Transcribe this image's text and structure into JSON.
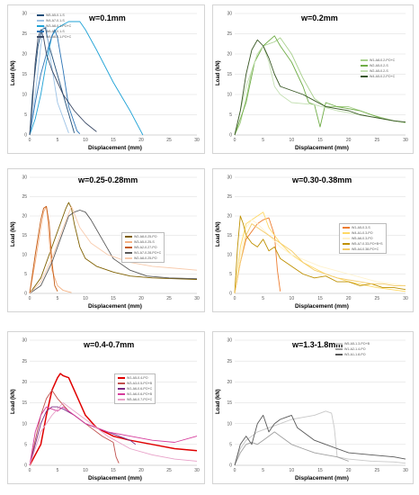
{
  "chart_data": [
    {
      "type": "line",
      "title": "w=0.1mm",
      "xlabel": "Displacement (mm)",
      "ylabel": "Load (kN)",
      "xlim": [
        0,
        30
      ],
      "ylim": [
        0,
        30
      ],
      "xticks": [
        0,
        5,
        10,
        15,
        20,
        25,
        30
      ],
      "yticks": [
        0,
        5,
        10,
        15,
        20,
        25,
        30
      ],
      "legend_position": "top-left",
      "series": [
        {
          "name": "W5-A5-0.1-S",
          "color": "#1f4e79",
          "x": [
            0,
            0.5,
            1.5,
            2.2,
            2.8,
            3.5,
            6,
            8
          ],
          "y": [
            0,
            10,
            22,
            26,
            26.5,
            22,
            10,
            0.5
          ]
        },
        {
          "name": "W4-A7-0.1-S",
          "color": "#9dc3e6",
          "x": [
            0,
            1,
            2,
            2.5,
            3,
            3.6,
            5,
            7
          ],
          "y": [
            0,
            10,
            22,
            27,
            26.5,
            20,
            8,
            0.5
          ]
        },
        {
          "name": "W3-A8-0.1-PO+C",
          "color": "#1fa2d6",
          "x": [
            0,
            1,
            2,
            3,
            4,
            5,
            7,
            9,
            10,
            12,
            15,
            18,
            20.3
          ],
          "y": [
            0,
            4,
            10,
            18,
            24.5,
            26.5,
            28,
            28,
            26,
            21,
            13,
            6,
            0
          ]
        },
        {
          "name": "W6-A7-0.1-S",
          "color": "#2e75b6",
          "x": [
            0,
            1,
            2,
            3,
            4,
            4.5,
            5,
            6,
            7,
            8.5,
            9
          ],
          "y": [
            0,
            8,
            15,
            20,
            24.5,
            26,
            24,
            16,
            7,
            1,
            0.3
          ]
        },
        {
          "name": "W4-A8-0.1-PO+C",
          "color": "#3b4a66",
          "x": [
            0,
            0.5,
            1,
            1.5,
            2,
            2.5,
            3,
            4,
            6,
            8,
            10,
            12
          ],
          "y": [
            0,
            8,
            18,
            24,
            26,
            24,
            20,
            16,
            10,
            6,
            3,
            0.8
          ]
        }
      ]
    },
    {
      "type": "line",
      "title": "w=0.2mm",
      "xlabel": "Displacement (mm)",
      "ylabel": "Load (kN)",
      "xlim": [
        0,
        30
      ],
      "ylim": [
        0,
        30
      ],
      "xticks": [
        0,
        5,
        10,
        15,
        20,
        25,
        30
      ],
      "yticks": [
        0,
        5,
        10,
        15,
        20,
        25,
        30
      ],
      "legend_position": "right",
      "series": [
        {
          "name": "W1-A8-0.2-PO+C",
          "color": "#a9d18e",
          "x": [
            0,
            1,
            2,
            3,
            4,
            5,
            7,
            8,
            10,
            12,
            14,
            16,
            20,
            24,
            28,
            30
          ],
          "y": [
            0,
            3,
            9,
            16,
            20,
            22,
            23,
            24,
            20,
            14,
            9,
            7,
            7,
            5,
            3.5,
            3
          ]
        },
        {
          "name": "W2-A5-0.2-S",
          "color": "#70ad47",
          "x": [
            0,
            2,
            3.5,
            5,
            7,
            8,
            10,
            12,
            13,
            14,
            15,
            16,
            18,
            22,
            26,
            30
          ],
          "y": [
            0,
            8,
            18,
            22,
            24.5,
            22,
            18,
            12,
            8,
            7.5,
            2,
            8,
            7,
            6,
            4,
            3
          ]
        },
        {
          "name": "W2-A5-0.2-S",
          "color": "#c5e0b4",
          "x": [
            0,
            2,
            4,
            5,
            6,
            7,
            8,
            10,
            14,
            18,
            22,
            26,
            30
          ],
          "y": [
            0,
            12,
            20,
            22,
            18,
            12,
            10,
            8,
            7.5,
            6,
            5,
            4,
            3
          ]
        },
        {
          "name": "W4-A5-0.2-PO+C",
          "color": "#375623",
          "x": [
            0,
            1,
            2,
            3,
            4,
            5,
            6,
            7,
            8,
            10,
            12,
            14,
            16,
            18,
            20,
            22,
            24,
            26,
            28,
            30
          ],
          "y": [
            0,
            6,
            15,
            21,
            23.5,
            22,
            19,
            15,
            12,
            11,
            10,
            8.5,
            7,
            6.5,
            6,
            5,
            4.5,
            4,
            3.5,
            3.2
          ]
        }
      ]
    },
    {
      "type": "line",
      "title": "w=0.25-0.28mm",
      "xlabel": "Displacement (mm)",
      "ylabel": "Load (kN)",
      "xlim": [
        0,
        30
      ],
      "ylim": [
        0,
        30
      ],
      "xticks": [
        0,
        5,
        10,
        15,
        20,
        25,
        30
      ],
      "yticks": [
        0,
        5,
        10,
        15,
        20,
        25,
        30
      ],
      "legend_position": "top-right",
      "series": [
        {
          "name": "W2-A8-0.25-PO",
          "color": "#7f6000",
          "x": [
            0,
            2,
            4,
            5.5,
            6.5,
            7,
            7.5,
            8,
            9,
            10,
            12,
            15,
            18,
            22,
            26,
            30
          ],
          "y": [
            0,
            4,
            12,
            18,
            22,
            23.5,
            22,
            18,
            12,
            9,
            7,
            5.5,
            4.5,
            4,
            3.8,
            3.6
          ]
        },
        {
          "name": "W3-A5-0.25-S",
          "color": "#f4b183",
          "x": [
            0,
            1,
            2,
            2.5,
            3,
            3.2,
            3.5,
            4,
            5,
            6,
            7,
            7.5
          ],
          "y": [
            0,
            8,
            17,
            21,
            22.5,
            20,
            14,
            6,
            2,
            0.8,
            0.4,
            0.2
          ]
        },
        {
          "name": "W5-A2-0.27-PO",
          "color": "#c55a11",
          "x": [
            0,
            1,
            2,
            2.5,
            3,
            3.5,
            4,
            4.5,
            5
          ],
          "y": [
            0,
            10,
            19,
            22,
            22.5,
            18,
            8,
            2,
            0.5
          ]
        },
        {
          "name": "W1-A7-0.28-PO+C",
          "color": "#595959",
          "x": [
            0,
            2,
            4,
            6,
            7,
            8,
            9,
            10,
            11,
            13,
            15,
            18,
            21,
            25,
            30
          ],
          "y": [
            0,
            2,
            8,
            16,
            20,
            21,
            21.5,
            21,
            19,
            14,
            9,
            6,
            4.5,
            4,
            3.8
          ]
        },
        {
          "name": "W2-A8-0.25-PO",
          "color": "#f8cbad",
          "x": [
            0,
            2,
            4,
            6,
            7.5,
            9,
            11,
            14,
            18,
            22,
            26,
            30
          ],
          "y": [
            0,
            3,
            9,
            17,
            22.5,
            17,
            13,
            10,
            8,
            7,
            6.5,
            6
          ]
        }
      ]
    },
    {
      "type": "line",
      "title": "w=0.30-0.38mm",
      "xlabel": "Displacement (mm)",
      "ylabel": "Load (kN)",
      "xlim": [
        0,
        30
      ],
      "ylim": [
        0,
        30
      ],
      "xticks": [
        0,
        5,
        10,
        15,
        20,
        25,
        30
      ],
      "yticks": [
        0,
        5,
        10,
        15,
        20,
        25,
        30
      ],
      "legend_position": "top-right",
      "series": [
        {
          "name": "W1-A5-0.3-S",
          "color": "#ed7d31",
          "x": [
            0,
            1,
            2,
            3,
            4,
            5,
            6,
            7,
            7.5,
            8
          ],
          "y": [
            0,
            8,
            14,
            16,
            18,
            19,
            19.5,
            15,
            6,
            0.5
          ]
        },
        {
          "name": "W4-A1-0.3-PO",
          "color": "#ffd966",
          "x": [
            0,
            1,
            2,
            3,
            4,
            5,
            6,
            8,
            10,
            12,
            16,
            20,
            25,
            30
          ],
          "y": [
            0,
            12,
            18,
            19,
            20,
            21,
            17,
            13,
            10,
            8,
            5,
            3,
            1.5,
            0.5
          ]
        },
        {
          "name": "W5-A6-0.3-PO",
          "color": "#fff2cc",
          "x": [
            0,
            1,
            2,
            3,
            4,
            6,
            8,
            10,
            15,
            20,
            25,
            30
          ],
          "y": [
            0,
            10,
            17,
            19,
            18,
            15,
            12,
            10,
            7,
            5,
            3,
            2
          ]
        },
        {
          "name": "W5-A7-0.33-PO+B+S",
          "color": "#bf9000",
          "x": [
            0,
            0.5,
            1,
            1.5,
            2,
            3,
            4,
            5,
            6,
            7,
            8,
            10,
            12,
            14,
            16,
            18,
            20,
            22,
            24,
            26,
            28,
            30
          ],
          "y": [
            0,
            12,
            20,
            18,
            15,
            13,
            12,
            14,
            11,
            12,
            9,
            7,
            5,
            4,
            4.5,
            3,
            3,
            2,
            2.5,
            1.5,
            1.5,
            1
          ]
        },
        {
          "name": "W5-A4-0.38-PO+C",
          "color": "#f4cb6a",
          "x": [
            0,
            1,
            2,
            3,
            4,
            5,
            6,
            8,
            10,
            12,
            14,
            16,
            18,
            20,
            22,
            24,
            26,
            28,
            30
          ],
          "y": [
            0,
            8,
            15,
            18,
            17,
            16,
            15,
            13,
            11,
            8,
            6,
            5,
            4,
            3.5,
            3,
            2.5,
            2.5,
            2,
            2
          ]
        }
      ]
    },
    {
      "type": "line",
      "title": "w=0.4-0.7mm",
      "xlabel": "Displacement (mm)",
      "ylabel": "Load (kN)",
      "xlim": [
        0,
        30
      ],
      "ylim": [
        0,
        30
      ],
      "xticks": [
        0,
        5,
        10,
        15,
        20,
        25,
        30
      ],
      "yticks": [
        0,
        5,
        10,
        15,
        20,
        25,
        30
      ],
      "legend_position": "top-right",
      "series": [
        {
          "name": "W1-A5-0.4-PO",
          "color": "#e00000",
          "x": [
            0,
            2,
            3,
            4,
            5,
            5.5,
            6,
            7,
            8,
            9,
            10,
            12,
            15,
            18,
            22,
            26,
            30
          ],
          "y": [
            0,
            5,
            12,
            18,
            21,
            22,
            21.5,
            21,
            18,
            15,
            12,
            9,
            7,
            6,
            5,
            4,
            3.5
          ]
        },
        {
          "name": "W3-A3-0.5-PO+B",
          "color": "#c0504d",
          "x": [
            0,
            1,
            2,
            3,
            4,
            5,
            7,
            9,
            11,
            13,
            15,
            15.5,
            16
          ],
          "y": [
            0,
            6,
            12,
            16,
            18,
            16,
            13,
            11,
            9,
            7,
            5.5,
            2,
            0.5
          ]
        },
        {
          "name": "W1-A6-0.6-PO+C",
          "color": "#7b2c84",
          "x": [
            0,
            1,
            2,
            3,
            4,
            5,
            6,
            8,
            10,
            12,
            14,
            16,
            18,
            19
          ],
          "y": [
            0,
            5,
            10,
            13,
            14,
            14,
            13.5,
            12,
            10,
            9,
            8,
            7,
            6,
            5
          ]
        },
        {
          "name": "W1-A6-0.6-PO+B",
          "color": "#d63c9c",
          "x": [
            0,
            1,
            2,
            3,
            4,
            5,
            6,
            8,
            10,
            14,
            18,
            22,
            26,
            30
          ],
          "y": [
            0,
            8,
            12,
            14,
            13.5,
            13,
            14,
            12,
            10,
            8,
            7,
            6,
            5.5,
            7
          ]
        },
        {
          "name": "W5-A6-0.7-PO+C",
          "color": "#e8a0c8",
          "x": [
            0,
            2,
            4,
            6,
            8,
            10,
            14,
            18,
            22,
            26,
            30
          ],
          "y": [
            0,
            8,
            12,
            15,
            13,
            11,
            7,
            4,
            2.5,
            1.5,
            1
          ]
        }
      ]
    },
    {
      "type": "line",
      "title": "w=1.3-1.8mm",
      "xlabel": "Displacement (mm)",
      "ylabel": "Load (kN)",
      "xlim": [
        0,
        30
      ],
      "ylim": [
        0,
        30
      ],
      "xticks": [
        0,
        5,
        10,
        15,
        20,
        25,
        30
      ],
      "yticks": [
        0,
        5,
        10,
        15,
        20,
        25,
        30
      ],
      "legend_position": "top-right",
      "series": [
        {
          "name": "W5-A5-1.3-PO+B",
          "color": "#c8c8c8",
          "x": [
            0,
            1,
            2,
            3,
            4,
            6,
            8,
            10,
            12,
            14,
            16,
            17,
            17.5,
            18,
            20,
            24,
            28,
            30
          ],
          "y": [
            0,
            4,
            6,
            7,
            8,
            9,
            10,
            11,
            11.5,
            12,
            13,
            12.5,
            9,
            2,
            1.5,
            1,
            0.8,
            0.5
          ]
        },
        {
          "name": "W1-A2-1.4-PO",
          "color": "#a0a0a0",
          "x": [
            0,
            1,
            2,
            3,
            4,
            5,
            6,
            7,
            8,
            10,
            12,
            14,
            16,
            18,
            20
          ],
          "y": [
            0,
            3,
            5,
            5.5,
            5,
            6,
            7,
            8,
            7,
            5,
            4,
            3,
            2.5,
            2,
            1
          ]
        },
        {
          "name": "W3-A1-1.8-PO",
          "color": "#595959",
          "x": [
            0,
            1,
            2,
            3,
            4,
            5,
            6,
            7,
            8,
            9,
            10,
            11,
            12,
            14,
            16,
            18,
            20,
            24,
            28,
            30
          ],
          "y": [
            0,
            5,
            7,
            5,
            10,
            12,
            8,
            10,
            11,
            11.5,
            12,
            9,
            8,
            6,
            5,
            4,
            3,
            2.5,
            2,
            1.5
          ]
        }
      ]
    }
  ]
}
